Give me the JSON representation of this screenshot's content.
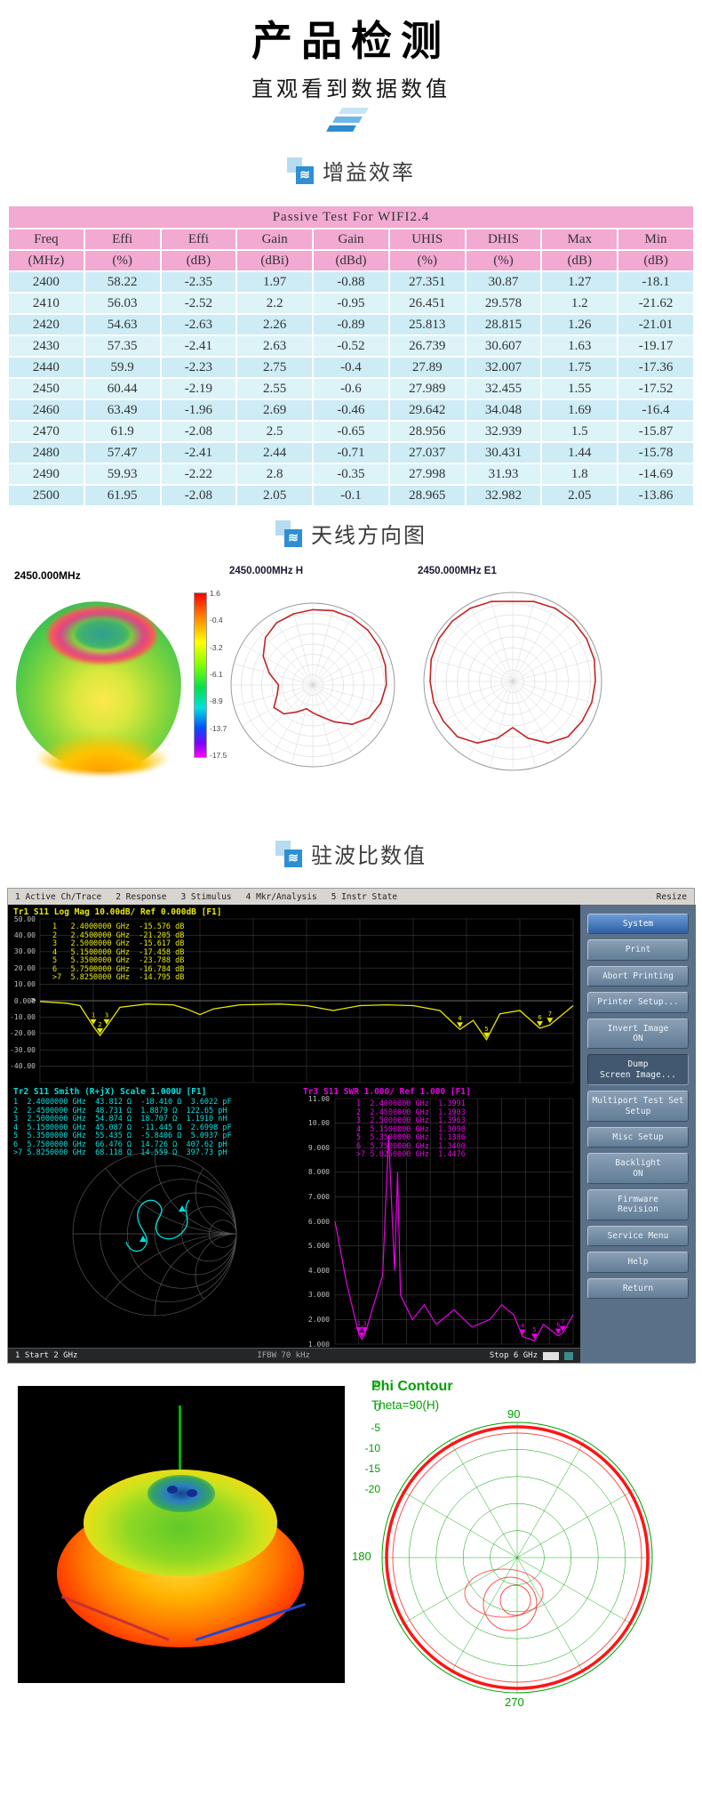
{
  "page": {
    "title": "产品检测",
    "subtitle": "直观看到数据数值"
  },
  "icons": {
    "wave_glyph": "≋"
  },
  "sections": {
    "gain": "增益效率",
    "antenna": "天线方向图",
    "vswr": "驻波比数值"
  },
  "gain_table": {
    "title": "Passive Test For WIFI2.4",
    "headers": [
      "Freq",
      "Effi",
      "Effi",
      "Gain",
      "Gain",
      "UHIS",
      "DHIS",
      "Max",
      "Min"
    ],
    "units": [
      "(MHz)",
      "(%)",
      "(dB)",
      "(dBi)",
      "(dBd)",
      "(%)",
      "(%)",
      "(dB)",
      "(dB)"
    ],
    "rows": [
      [
        "2400",
        "58.22",
        "-2.35",
        "1.97",
        "-0.88",
        "27.351",
        "30.87",
        "1.27",
        "-18.1"
      ],
      [
        "2410",
        "56.03",
        "-2.52",
        "2.2",
        "-0.95",
        "26.451",
        "29.578",
        "1.2",
        "-21.62"
      ],
      [
        "2420",
        "54.63",
        "-2.63",
        "2.26",
        "-0.89",
        "25.813",
        "28.815",
        "1.26",
        "-21.01"
      ],
      [
        "2430",
        "57.35",
        "-2.41",
        "2.63",
        "-0.52",
        "26.739",
        "30.607",
        "1.63",
        "-19.17"
      ],
      [
        "2440",
        "59.9",
        "-2.23",
        "2.75",
        "-0.4",
        "27.89",
        "32.007",
        "1.75",
        "-17.36"
      ],
      [
        "2450",
        "60.44",
        "-2.19",
        "2.55",
        "-0.6",
        "27.989",
        "32.455",
        "1.55",
        "-17.52"
      ],
      [
        "2460",
        "63.49",
        "-1.96",
        "2.69",
        "-0.46",
        "29.642",
        "34.048",
        "1.69",
        "-16.4"
      ],
      [
        "2470",
        "61.9",
        "-2.08",
        "2.5",
        "-0.65",
        "28.956",
        "32.939",
        "1.5",
        "-15.87"
      ],
      [
        "2480",
        "57.47",
        "-2.41",
        "2.44",
        "-0.71",
        "27.037",
        "30.431",
        "1.44",
        "-15.78"
      ],
      [
        "2490",
        "59.93",
        "-2.22",
        "2.8",
        "-0.35",
        "27.998",
        "31.93",
        "1.8",
        "-14.69"
      ],
      [
        "2500",
        "61.95",
        "-2.08",
        "2.05",
        "-0.1",
        "28.965",
        "32.982",
        "2.05",
        "-13.86"
      ]
    ]
  },
  "antenna": {
    "pattern3d_label": "2450.000MHz",
    "colorbar_values": [
      "1.6",
      "-0.4",
      "-3.2",
      "-6.1",
      "-8.9",
      "-13.7",
      "-17.5"
    ],
    "polar_h_title": "2450.000MHz  H",
    "polar_e_title": "2450.000MHz  E1"
  },
  "vna": {
    "menu": [
      "1 Active Ch/Trace",
      "2 Response",
      "3 Stimulus",
      "4 Mkr/Analysis",
      "5 Instr State"
    ],
    "resize_label": "Resize",
    "tr1_title": "Tr1 S11 Log Mag 10.00dB/ Ref 0.000dB [F1]",
    "tr1_axis": [
      "50.00",
      "40.00",
      "30.00",
      "20.00",
      "10.00",
      "0.000",
      "-10.00",
      "-20.00",
      "-30.00",
      "-40.00"
    ],
    "tr1_markers": [
      "1   2.4000000 GHz  -15.576 dB",
      "2   2.4500000 GHz  -21.205 dB",
      "3   2.5000000 GHz  -15.617 dB",
      "4   5.1500000 GHz  -17.458 dB",
      "5   5.3500000 GHz  -23.788 dB",
      "6   5.7500000 GHz  -16.784 dB",
      ">7  5.8250000 GHz  -14.795 dB"
    ],
    "tr2_title": "Tr2 S11 Smith (R+jX) Scale 1.000U [F1]",
    "tr2_markers": [
      "1  2.4000000 GHz  43.812 Ω  -18.410 Ω  3.6022 pF",
      "2  2.4500000 GHz  48.731 Ω  1.8879 Ω  122.65 pH",
      "3  2.5000000 GHz  54.874 Ω  18.707 Ω  1.1910 nH",
      "4  5.1500000 GHz  45.087 Ω  -11.445 Ω  2.6998 pF",
      "5  5.3500000 GHz  55.435 Ω  -5.8406 Ω  5.0937 pF",
      "6  5.7500000 GHz  66.476 Ω  14.726 Ω  407.62 pH",
      ">7 5.8250000 GHz  68.118 Ω  14.559 Ω  397.73 pH"
    ],
    "tr3_title": "Tr3 S11 SWR 1.000/ Ref 1.000 [F1]",
    "tr3_axis": [
      "11.00",
      "10.00",
      "9.000",
      "8.000",
      "7.000",
      "6.000",
      "5.000",
      "4.000",
      "3.000",
      "2.000",
      "1.000"
    ],
    "tr3_markers": [
      "1  2.4000000 GHz  1.3991",
      "2  2.4500000 GHz  1.1903",
      "3  2.5000000 GHz  1.3963",
      "4  5.1500000 GHz  1.3090",
      "5  5.3500000 GHz  1.1386",
      "6  5.7500000 GHz  1.3400",
      ">7 5.8250000 GHz  1.4476"
    ],
    "status": {
      "start": "1 Start 2 GHz",
      "ifbw": "IFBW 70 kHz",
      "stop": "Stop 6 GHz"
    },
    "buttons": [
      {
        "label": "System",
        "state": "active"
      },
      {
        "label": "Print"
      },
      {
        "label": "Abort Printing"
      },
      {
        "label": "Printer Setup..."
      },
      {
        "label": "Invert Image\nON"
      },
      {
        "label": "Dump\nScreen Image...",
        "state": "pressed"
      },
      {
        "label": "Multiport Test Set\nSetup"
      },
      {
        "label": "Misc Setup"
      },
      {
        "label": "Backlight\nON"
      },
      {
        "label": "Firmware\nRevision"
      },
      {
        "label": "Service Menu"
      },
      {
        "label": "Help"
      },
      {
        "label": "Return"
      }
    ]
  },
  "phi": {
    "title": "Phi Contour",
    "subtitle": "Theta=90(H)",
    "angles": [
      "90",
      "180",
      "270"
    ],
    "scale": [
      "5",
      "0",
      "-5",
      "-10",
      "-15",
      "-20"
    ]
  }
}
